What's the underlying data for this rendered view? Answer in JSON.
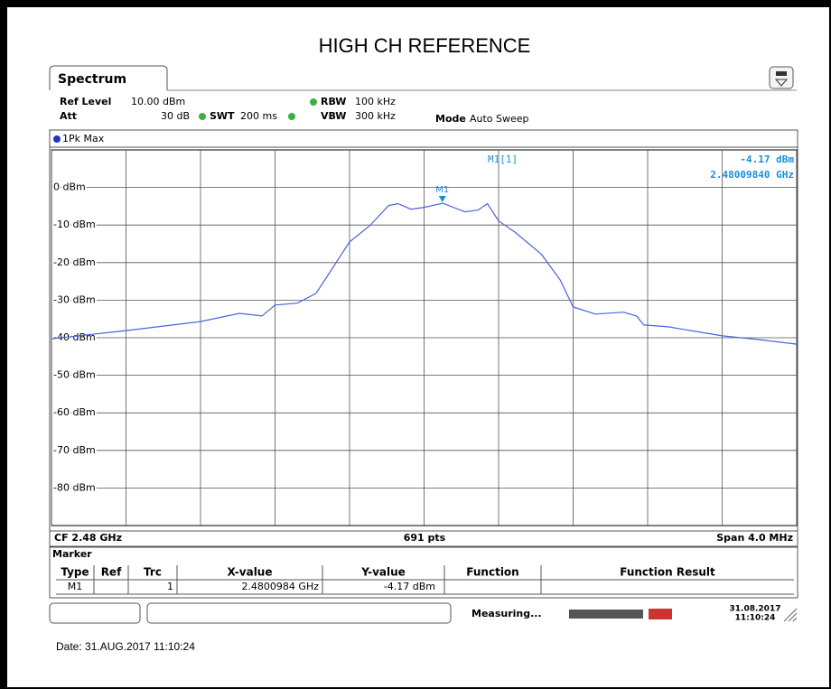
{
  "title": "HIGH CH REFERENCE",
  "tab": "Spectrum",
  "settings": {
    "ref_level_label": "Ref Level",
    "ref_level": "10.00 dBm",
    "att_label": "Att",
    "att": "30 dB",
    "swt_label": "SWT",
    "swt": "200 ms",
    "rbw_label": "RBW",
    "rbw": "100 kHz",
    "vbw_label": "VBW",
    "vbw": "300 kHz",
    "mode_label": "Mode",
    "mode": "Auto Sweep"
  },
  "chart_data": {
    "type": "line",
    "x": [
      2.478,
      2.4784,
      2.4788,
      2.47901,
      2.47913,
      2.4792,
      2.47932,
      2.47942,
      2.47953,
      2.4796,
      2.47971,
      2.47981,
      2.47986,
      2.47993,
      2.48,
      2.4801,
      2.48022,
      2.48029,
      2.48034,
      2.4804,
      2.48049,
      2.48063,
      2.48073,
      2.4808,
      2.48092,
      2.48107,
      2.48114,
      2.48118,
      2.48131,
      2.4816,
      2.4818,
      2.482
    ],
    "series": [
      {
        "name": "1Pk Max",
        "color": "#4a62e0",
        "values": [
          -40.3,
          -38.1,
          -35.7,
          -33.5,
          -34.2,
          -31.3,
          -30.8,
          -28.2,
          -19.8,
          -14.5,
          -10.1,
          -4.8,
          -4.3,
          -5.8,
          -5.3,
          -4.2,
          -6.5,
          -6.0,
          -4.3,
          -8.9,
          -12.0,
          -17.8,
          -24.6,
          -31.8,
          -33.7,
          -33.2,
          -34.2,
          -36.6,
          -37.1,
          -39.5,
          -40.5,
          -41.7
        ]
      }
    ],
    "xlim": [
      2.478,
      2.482
    ],
    "xticks": [
      2.478,
      2.4784,
      2.4788,
      2.4792,
      2.4796,
      2.48,
      2.4804,
      2.4808,
      2.4812,
      2.4816,
      2.482
    ],
    "ylim": [
      -90,
      10
    ],
    "yticks": [
      {
        "value": 0,
        "label": "0 dBm"
      },
      {
        "value": -10,
        "label": "-10 dBm"
      },
      {
        "value": -20,
        "label": "-20 dBm"
      },
      {
        "value": -30,
        "label": "-30 dBm"
      },
      {
        "value": -40,
        "label": "-40 dBm"
      },
      {
        "value": -50,
        "label": "-50 dBm"
      },
      {
        "value": -60,
        "label": "-60 dBm"
      },
      {
        "value": -70,
        "label": "-70 dBm"
      },
      {
        "value": -80,
        "label": "-80 dBm"
      }
    ],
    "grid": true,
    "marker": {
      "label": "M1",
      "x": 2.4800984,
      "y": -4.17
    },
    "marker_readout": {
      "label": "M1[1]",
      "level": "-4.17 dBm",
      "frequency": "2.48009840 GHz"
    },
    "cf": "CF 2.48 GHz",
    "points": "691 pts",
    "span": "Span 4.0 MHz"
  },
  "marker_table": {
    "title": "Marker",
    "columns": [
      "Type",
      "Ref",
      "Trc",
      "X-value",
      "Y-value",
      "Function",
      "Function Result"
    ],
    "rows": [
      {
        "type": "M1",
        "trc": "1",
        "x_value": "2.4800984 GHz",
        "y_value": "-4.17 dBm"
      }
    ]
  },
  "status": {
    "state": "Measuring...",
    "date": "31.08.2017",
    "time": "11:10:24"
  },
  "footer": "Date: 31.AUG.2017  11:10:24"
}
